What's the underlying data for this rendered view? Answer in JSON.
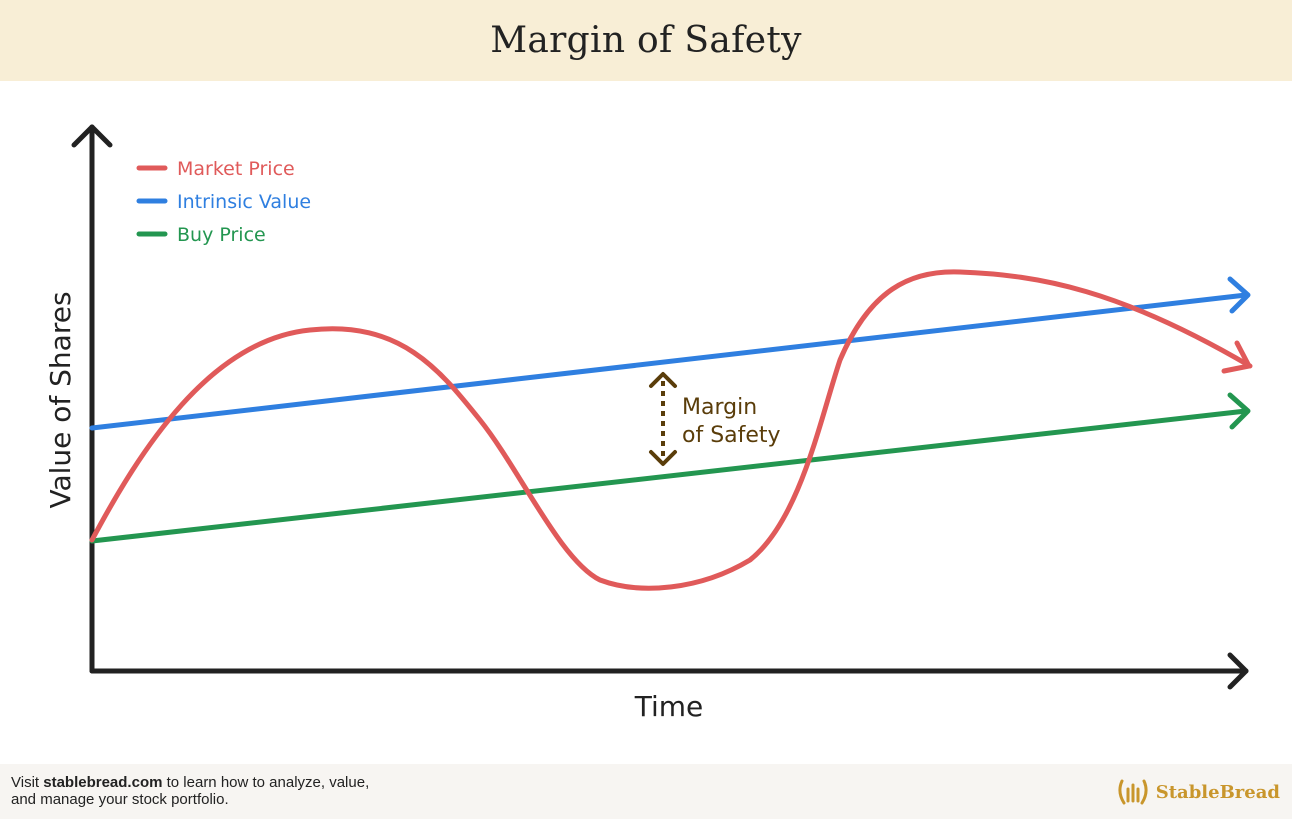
{
  "header": {
    "title": "Margin of Safety"
  },
  "chart_data": {
    "type": "line",
    "title": "Margin of Safety",
    "xlabel": "Time",
    "ylabel": "Value of Shares",
    "grid": false,
    "legend_position": "top-left",
    "series": [
      {
        "name": "Market Price",
        "color": "#e05a5a",
        "shape": "wave"
      },
      {
        "name": "Intrinsic Value",
        "color": "#2f7fe0",
        "shape": "rising-line"
      },
      {
        "name": "Buy Price",
        "color": "#239650",
        "shape": "rising-line"
      }
    ],
    "annotation": {
      "line1": "Margin",
      "line2": "of Safety",
      "color": "#5a3d0a"
    }
  },
  "footer": {
    "prefix": "Visit ",
    "link": "stablebread.com",
    "suffix": " to learn how to analyze, value,",
    "line2": "and manage your stock portfolio.",
    "brand": "StableBread",
    "brand_color": "#c9962c"
  }
}
